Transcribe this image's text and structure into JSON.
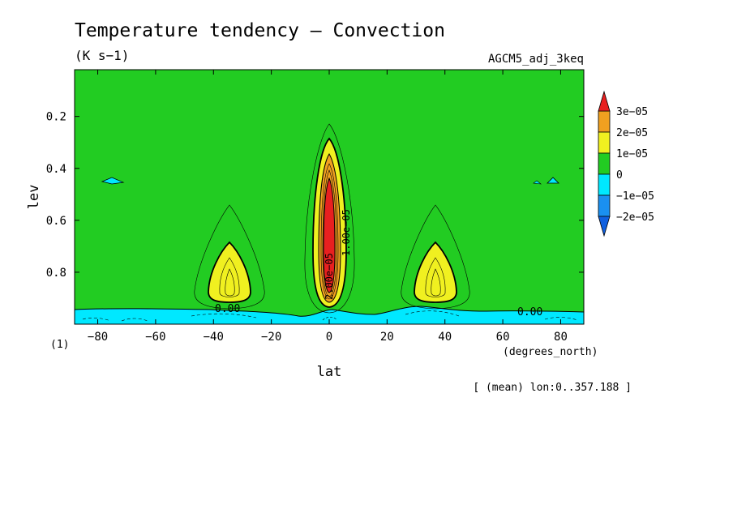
{
  "chart_data": {
    "type": "contour",
    "title": "Temperature tendency — Convection",
    "units_label": "(K s−1)",
    "dataset_label": "AGCM5_adj_3keq",
    "xlabel": "lat",
    "ylabel": "lev",
    "x_unit_label": "(degrees_north)",
    "corner_label": "(1)",
    "footnote": "[ (mean) lon:0..357.188 ]",
    "xlim": [
      -88,
      88
    ],
    "ylim": [
      1.0,
      0.02
    ],
    "x_ticks": [
      -80,
      -60,
      -40,
      -20,
      0,
      20,
      40,
      60,
      80
    ],
    "x_tick_labels": [
      "−80",
      "−60",
      "−40",
      "−20",
      "0",
      "20",
      "40",
      "60",
      "80"
    ],
    "y_ticks": [
      0.2,
      0.4,
      0.6,
      0.8
    ],
    "y_tick_labels": [
      "0.2",
      "0.4",
      "0.6",
      "0.8"
    ],
    "background_level_color": "#22cc22",
    "colorbar": {
      "levels": [
        "3e−05",
        "2e−05",
        "1e−05",
        "0",
        "−1e−05",
        "−2e−05"
      ],
      "colors": [
        "#e82020",
        "#f0a020",
        "#f0f020",
        "#22cc22",
        "#00e8ff",
        "#1a90f0",
        "#1060e0"
      ],
      "extend": "both"
    },
    "contour_labels": [
      {
        "text": "0.00",
        "lat": -35,
        "lev": 0.95
      },
      {
        "text": "0.00",
        "lat": 70,
        "lev": 0.955
      },
      {
        "text": "1.00e−05",
        "lat": 7,
        "lev": 0.6
      },
      {
        "text": "2.00e−05",
        "lat": -1,
        "lev": 0.82
      }
    ],
    "features": [
      {
        "name": "equatorial maximum",
        "lat_center": 0,
        "lev_top": 0.22,
        "lev_bottom": 0.97,
        "peak": "above 3e−05"
      },
      {
        "name": "southern subtropical maximum",
        "lat_center": -37,
        "lev_top": 0.53,
        "lev_bottom": 0.95,
        "peak": "1e−05 to 2e−05"
      },
      {
        "name": "northern subtropical maximum",
        "lat_center": 37,
        "lev_top": 0.53,
        "lev_bottom": 0.95,
        "peak": "1e−05 to 2e−05"
      },
      {
        "name": "near-surface cooling",
        "lev_range": [
          0.95,
          1.0
        ],
        "value": "−1e−05 to 0"
      }
    ]
  }
}
